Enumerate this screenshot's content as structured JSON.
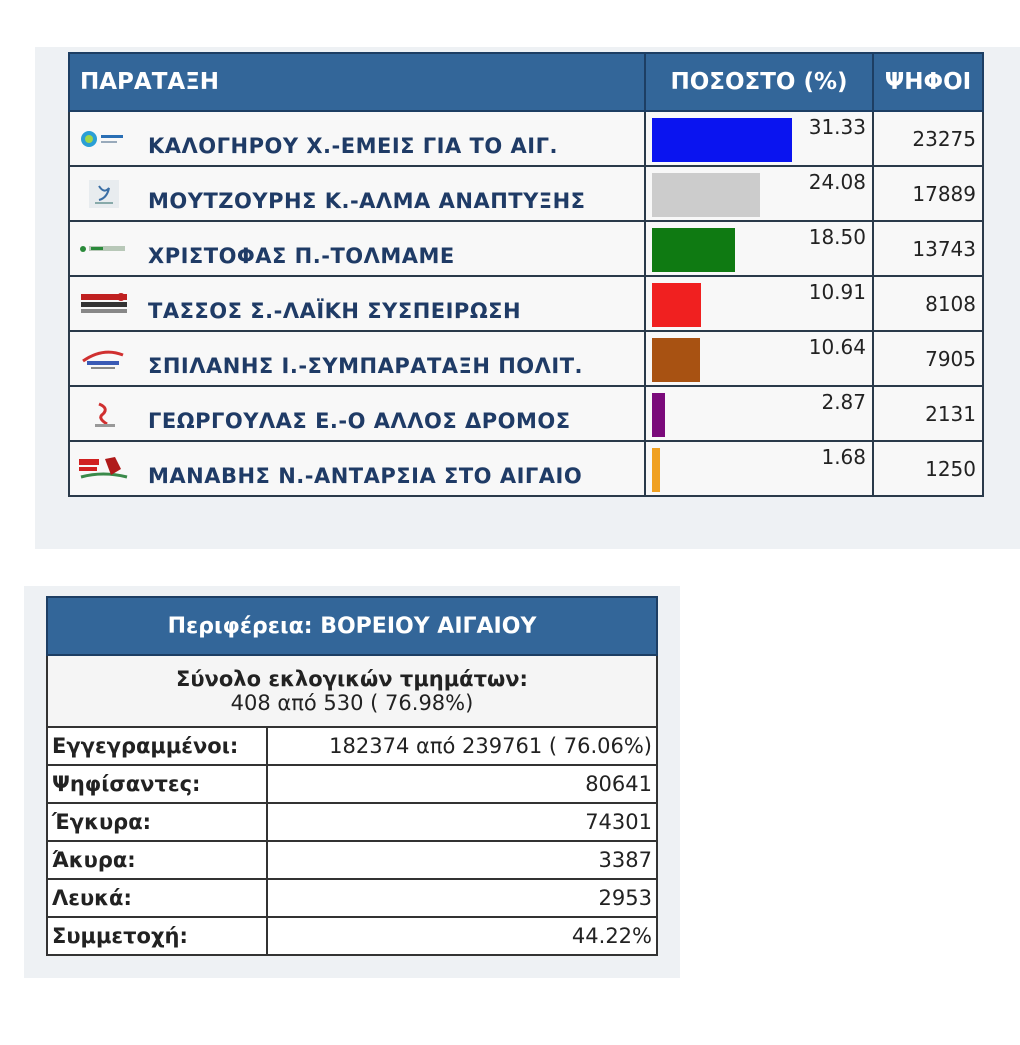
{
  "chart_data": {
    "type": "bar",
    "headers": {
      "party": "ΠΑΡΑΤΑΞΗ",
      "percent": "ΠΟΣΟΣΤΟ (%)",
      "votes": "ΨΗΦΟΙ"
    },
    "categories": [
      "ΚΑΛΟΓΗΡΟΥ Χ.-ΕΜΕΙΣ ΓΙΑ ΤΟ ΑΙΓ.",
      "ΜΟΥΤΖΟΥΡΗΣ Κ.-ΑΛΜΑ ΑΝΑΠΤΥΞΗΣ",
      "ΧΡΙΣΤΟΦΑΣ Π.-ΤΟΛΜΑΜΕ",
      "ΤΑΣΣΟΣ Σ.-ΛΑΪΚΗ ΣΥΣΠΕΙΡΩΣΗ",
      "ΣΠΙΛΑΝΗΣ Ι.-ΣΥΜΠΑΡΑΤΑΞΗ ΠΟΛΙΤ.",
      "ΓΕΩΡΓΟΥΛΑΣ Ε.-Ο ΑΛΛΟΣ ΔΡΟΜΟΣ",
      "ΜΑΝΑΒΗΣ Ν.-ΑΝΤΑΡΣΙΑ ΣΤΟ ΑΙΓΑΙΟ"
    ],
    "percent_labels": [
      "31.33",
      "24.08",
      "18.50",
      "10.91",
      "10.64",
      "2.87",
      "1.68"
    ],
    "values": [
      31.33,
      24.08,
      18.5,
      10.91,
      10.64,
      2.87,
      1.68
    ],
    "votes": [
      "23275",
      "17889",
      "13743",
      "8108",
      "7905",
      "2131",
      "1250"
    ],
    "colors": [
      "#0a14f0",
      "#cccccc",
      "#0f7a12",
      "#f02020",
      "#a85212",
      "#7a0a7a",
      "#f0a020"
    ],
    "logo_icons": [
      "emeis-logo-icon",
      "alma-logo-icon",
      "tolmame-logo-icon",
      "laiki-syspeirosi-logo-icon",
      "symparataxi-logo-icon",
      "allos-dromos-logo-icon",
      "antarsia-logo-icon"
    ],
    "xlim": [
      0,
      100
    ]
  },
  "summary": {
    "region_title": "Περιφέρεια: ΒΟΡΕΙΟΥ ΑΙΓΑΙΟΥ",
    "sections_label": "Σύνολο εκλογικών τμημάτων:",
    "sections_value": "408 από 530 ( 76.98%)",
    "rows": [
      {
        "label": "Εγγεγραμμένοι:",
        "value": "182374 από 239761 ( 76.06%)"
      },
      {
        "label": "Ψηφίσαντες:",
        "value": "80641"
      },
      {
        "label": "Έγκυρα:",
        "value": "74301"
      },
      {
        "label": "Άκυρα:",
        "value": "3387"
      },
      {
        "label": "Λευκά:",
        "value": "2953"
      },
      {
        "label": "Συμμετοχή:",
        "value": "44.22%"
      }
    ]
  }
}
